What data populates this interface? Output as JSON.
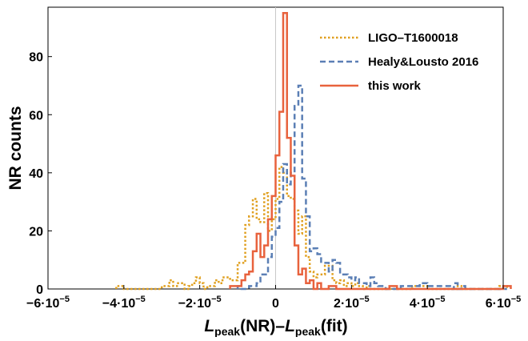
{
  "chart_data": {
    "type": "histogram",
    "xlabel": {
      "parts": [
        {
          "t": "L",
          "style": "italic"
        },
        {
          "t": "peak",
          "style": "sub"
        },
        {
          "t": "(NR)–",
          "style": "normal"
        },
        {
          "t": "L",
          "style": "italic"
        },
        {
          "t": "peak",
          "style": "sub"
        },
        {
          "t": "(fit)",
          "style": "normal"
        }
      ]
    },
    "ylabel": "NR counts",
    "xlim": [
      -6e-05,
      6e-05
    ],
    "ylim": [
      0,
      97
    ],
    "zero_line": 0,
    "grid": false,
    "legend_position": "top-right",
    "x_ticks": [
      {
        "value": -6e-05,
        "mantissa": "−6",
        "base": "·10",
        "exp": "−5"
      },
      {
        "value": -4e-05,
        "mantissa": "−4",
        "base": "·10",
        "exp": "−5"
      },
      {
        "value": -2e-05,
        "mantissa": "−2",
        "base": "·10",
        "exp": "−5"
      },
      {
        "value": 0,
        "mantissa": "0",
        "base": "",
        "exp": ""
      },
      {
        "value": 2e-05,
        "mantissa": "2",
        "base": "·10",
        "exp": "−5"
      },
      {
        "value": 4e-05,
        "mantissa": "4",
        "base": "·10",
        "exp": "−5"
      },
      {
        "value": 6e-05,
        "mantissa": "6",
        "base": "·10",
        "exp": "−5"
      }
    ],
    "y_ticks": [
      {
        "value": 0,
        "label": "0"
      },
      {
        "value": 20,
        "label": "20"
      },
      {
        "value": 40,
        "label": "40"
      },
      {
        "value": 60,
        "label": "60"
      },
      {
        "value": 80,
        "label": "80"
      }
    ],
    "series": [
      {
        "name": "LIGO–T1600018",
        "color": "#e0a020",
        "dash": "2.5,2.5",
        "x_start": -4.2e-05,
        "bin_width": 1e-06,
        "counts": [
          1,
          1,
          0,
          0,
          0,
          0,
          0,
          0,
          0,
          0,
          0,
          0,
          1,
          1,
          3,
          1,
          2,
          2,
          0,
          1,
          2,
          4,
          2,
          0,
          1,
          1,
          3,
          2,
          4,
          4,
          3,
          3,
          9,
          9,
          22,
          25,
          31,
          24,
          23,
          33,
          20,
          24,
          31,
          42,
          40,
          32,
          31,
          27,
          19,
          25,
          11,
          6,
          4,
          5,
          5,
          8,
          8,
          3,
          2,
          3,
          1,
          2,
          1,
          2,
          1,
          0,
          1,
          0,
          0,
          0,
          0,
          0,
          0,
          0,
          0,
          0,
          0,
          0,
          1,
          1,
          1,
          1,
          0,
          0,
          0,
          0,
          0,
          0,
          0,
          0,
          1,
          0,
          0,
          0,
          0,
          0,
          0,
          0,
          0,
          0,
          0,
          1,
          1
        ]
      },
      {
        "name": "Healy&Lousto 2016",
        "color": "#5b7fb5",
        "dash": "7,4",
        "x_start": -1e-05,
        "bin_width": 1e-06,
        "counts": [
          1,
          0,
          0,
          1,
          1,
          2,
          5,
          5,
          11,
          18,
          21,
          30,
          43,
          36,
          40,
          63,
          70,
          38,
          25,
          13,
          14,
          12,
          9,
          9,
          6,
          10,
          9,
          5,
          5,
          4,
          3,
          4,
          2,
          2,
          1,
          4,
          2,
          1,
          1,
          0,
          0,
          0,
          0,
          1,
          1,
          1,
          1,
          1,
          2,
          2,
          1,
          1,
          1,
          1,
          1,
          1,
          0,
          2,
          0,
          1,
          0,
          0,
          0,
          0,
          0,
          0,
          0,
          0,
          0,
          0,
          0
        ]
      },
      {
        "name": "this work",
        "color": "#e8623d",
        "dash": "",
        "x_start": -1.2e-05,
        "bin_width": 1e-06,
        "counts": [
          1,
          1,
          1,
          3,
          5,
          6,
          13,
          19,
          11,
          15,
          24,
          32,
          46,
          61,
          95,
          52,
          39,
          15,
          5,
          7,
          2,
          3,
          0,
          2,
          0,
          0,
          1,
          1,
          0,
          0,
          0,
          0,
          0,
          0,
          0,
          0,
          0,
          0,
          0,
          0,
          0,
          0,
          1,
          1,
          0,
          0,
          0,
          0,
          0,
          0,
          0,
          0,
          0,
          0,
          0,
          0,
          0,
          0,
          0,
          0,
          0,
          0,
          0,
          0,
          0,
          0,
          0,
          0,
          0,
          0,
          0,
          0,
          1,
          1
        ]
      }
    ]
  }
}
